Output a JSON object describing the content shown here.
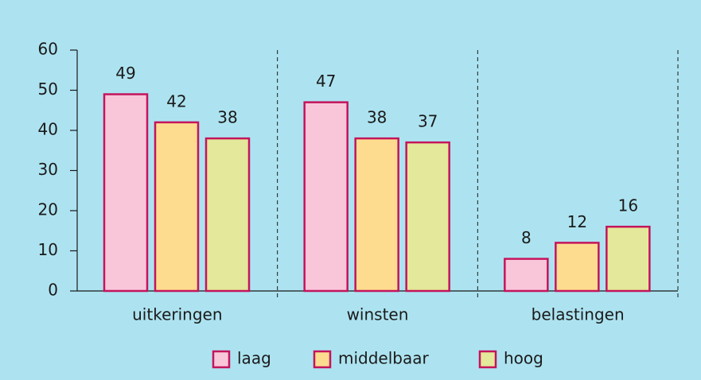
{
  "chart_data": {
    "type": "bar",
    "categories": [
      "uitkeringen",
      "winsten",
      "belastingen"
    ],
    "series": [
      {
        "name": "laag",
        "color": "#f9c6d9",
        "values": [
          49,
          47,
          8
        ]
      },
      {
        "name": "middelbaar",
        "color": "#fddc8f",
        "values": [
          42,
          38,
          12
        ]
      },
      {
        "name": "hoog",
        "color": "#e3e89a",
        "values": [
          38,
          37,
          16
        ]
      }
    ],
    "ylim": [
      0,
      60
    ],
    "yticks": [
      0,
      10,
      20,
      30,
      40,
      50,
      60
    ],
    "border_color": "#c4145c",
    "legend": "bottom"
  }
}
